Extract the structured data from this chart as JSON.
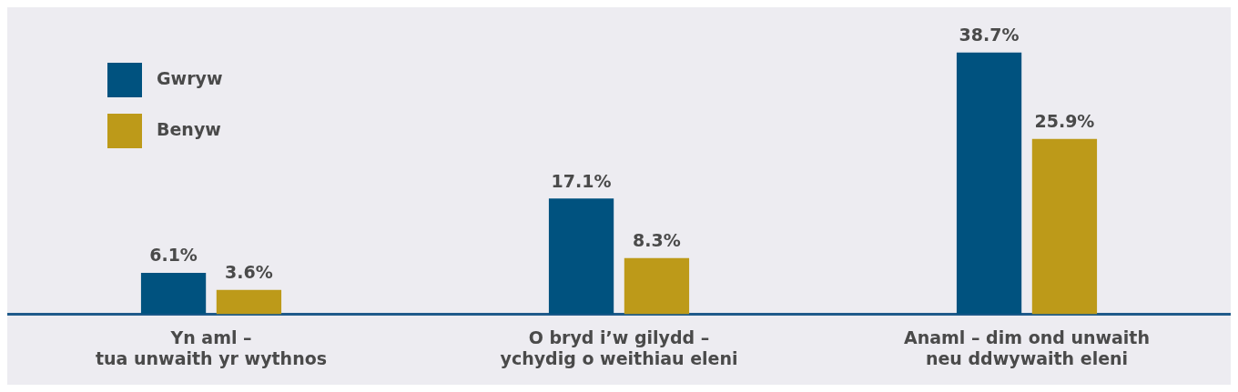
{
  "chart_data": {
    "type": "bar",
    "categories": [
      "Yn aml –\ntua unwaith yr wythnos",
      "O bryd i’w gilydd –\nychydig o weithiau eleni",
      "Anaml – dim ond unwaith\nneu ddwywaith eleni"
    ],
    "series": [
      {
        "name": "Gwryw",
        "color": "#00527f",
        "values": [
          6.1,
          17.1,
          38.7
        ],
        "value_labels": [
          "6.1%",
          "17.1%",
          "38.7%"
        ]
      },
      {
        "name": "Benyw",
        "color": "#bd9a19",
        "values": [
          3.6,
          8.3,
          25.9
        ],
        "value_labels": [
          "3.6%",
          "8.3%",
          "25.9%"
        ]
      }
    ],
    "grid": false,
    "legend": "top left"
  }
}
